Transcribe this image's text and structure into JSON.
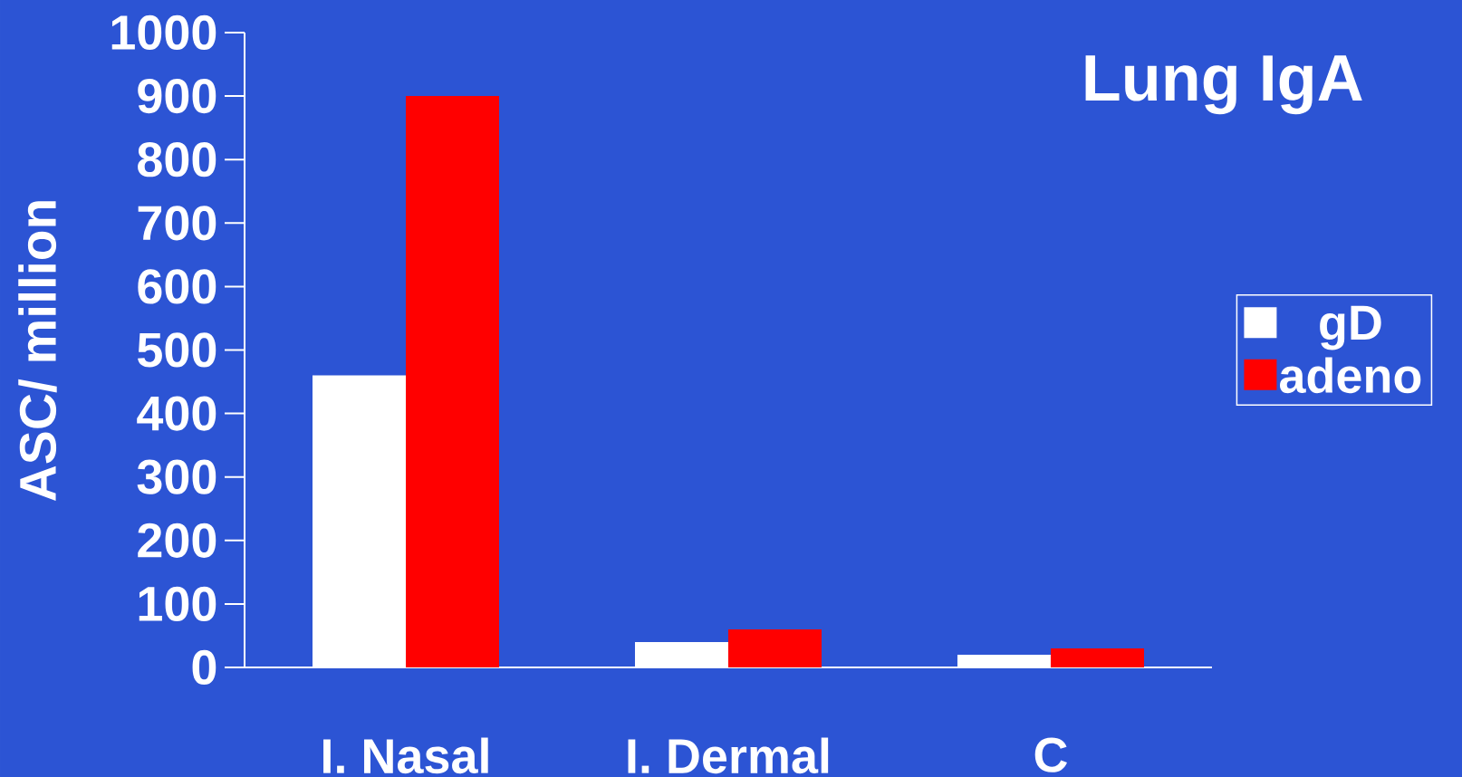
{
  "chart_data": {
    "type": "bar",
    "title": "Lung IgA",
    "ylabel": "ASC/ million",
    "categories": [
      "I. Nasal",
      "I. Dermal",
      "C"
    ],
    "series": [
      {
        "name": "gD",
        "color": "#ffffff",
        "values": [
          460,
          40,
          20
        ]
      },
      {
        "name": "adeno",
        "color": "#ff0000",
        "values": [
          900,
          60,
          30
        ]
      }
    ],
    "ylim": [
      0,
      1000
    ],
    "yticks": [
      0,
      100,
      200,
      300,
      400,
      500,
      600,
      700,
      800,
      900,
      1000
    ],
    "grid": false,
    "legend": "right"
  }
}
